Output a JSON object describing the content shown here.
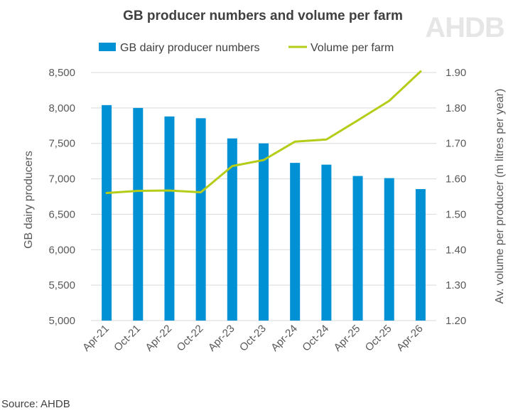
{
  "logo": "AHDB",
  "source": "Source: AHDB",
  "chart_data": {
    "type": "bar+line",
    "title": "GB producer numbers and volume per farm",
    "categories": [
      "Apr-21",
      "Oct-21",
      "Apr-22",
      "Oct-22",
      "Apr-23",
      "Oct-23",
      "Apr-24",
      "Oct-24",
      "Apr-25",
      "Oct-25",
      "Apr-26"
    ],
    "series": [
      {
        "name": "GB dairy producer numbers",
        "type": "bar",
        "axis": "left",
        "color": "#0090d4",
        "values": [
          8040,
          8000,
          7880,
          7855,
          7570,
          7500,
          7225,
          7200,
          7040,
          7010,
          6855
        ]
      },
      {
        "name": "Volume per farm",
        "type": "line",
        "axis": "right",
        "color": "#b5cc18",
        "values": [
          1.56,
          1.566,
          1.567,
          1.562,
          1.636,
          1.653,
          1.705,
          1.711,
          1.765,
          1.82,
          1.903
        ]
      }
    ],
    "ylabel_left": "GB dairy producers",
    "ylabel_right": "Av. volume per producer (m litres per year)",
    "ylim_left": [
      5000,
      8500
    ],
    "ylim_right": [
      1.2,
      1.9
    ],
    "yticks_left": [
      "5,000",
      "5,500",
      "6,000",
      "6,500",
      "7,000",
      "7,500",
      "8,000",
      "8,500"
    ],
    "yticks_right": [
      "1.20",
      "1.30",
      "1.40",
      "1.50",
      "1.60",
      "1.70",
      "1.80",
      "1.90"
    ],
    "grid": true,
    "legend": "top-center"
  }
}
